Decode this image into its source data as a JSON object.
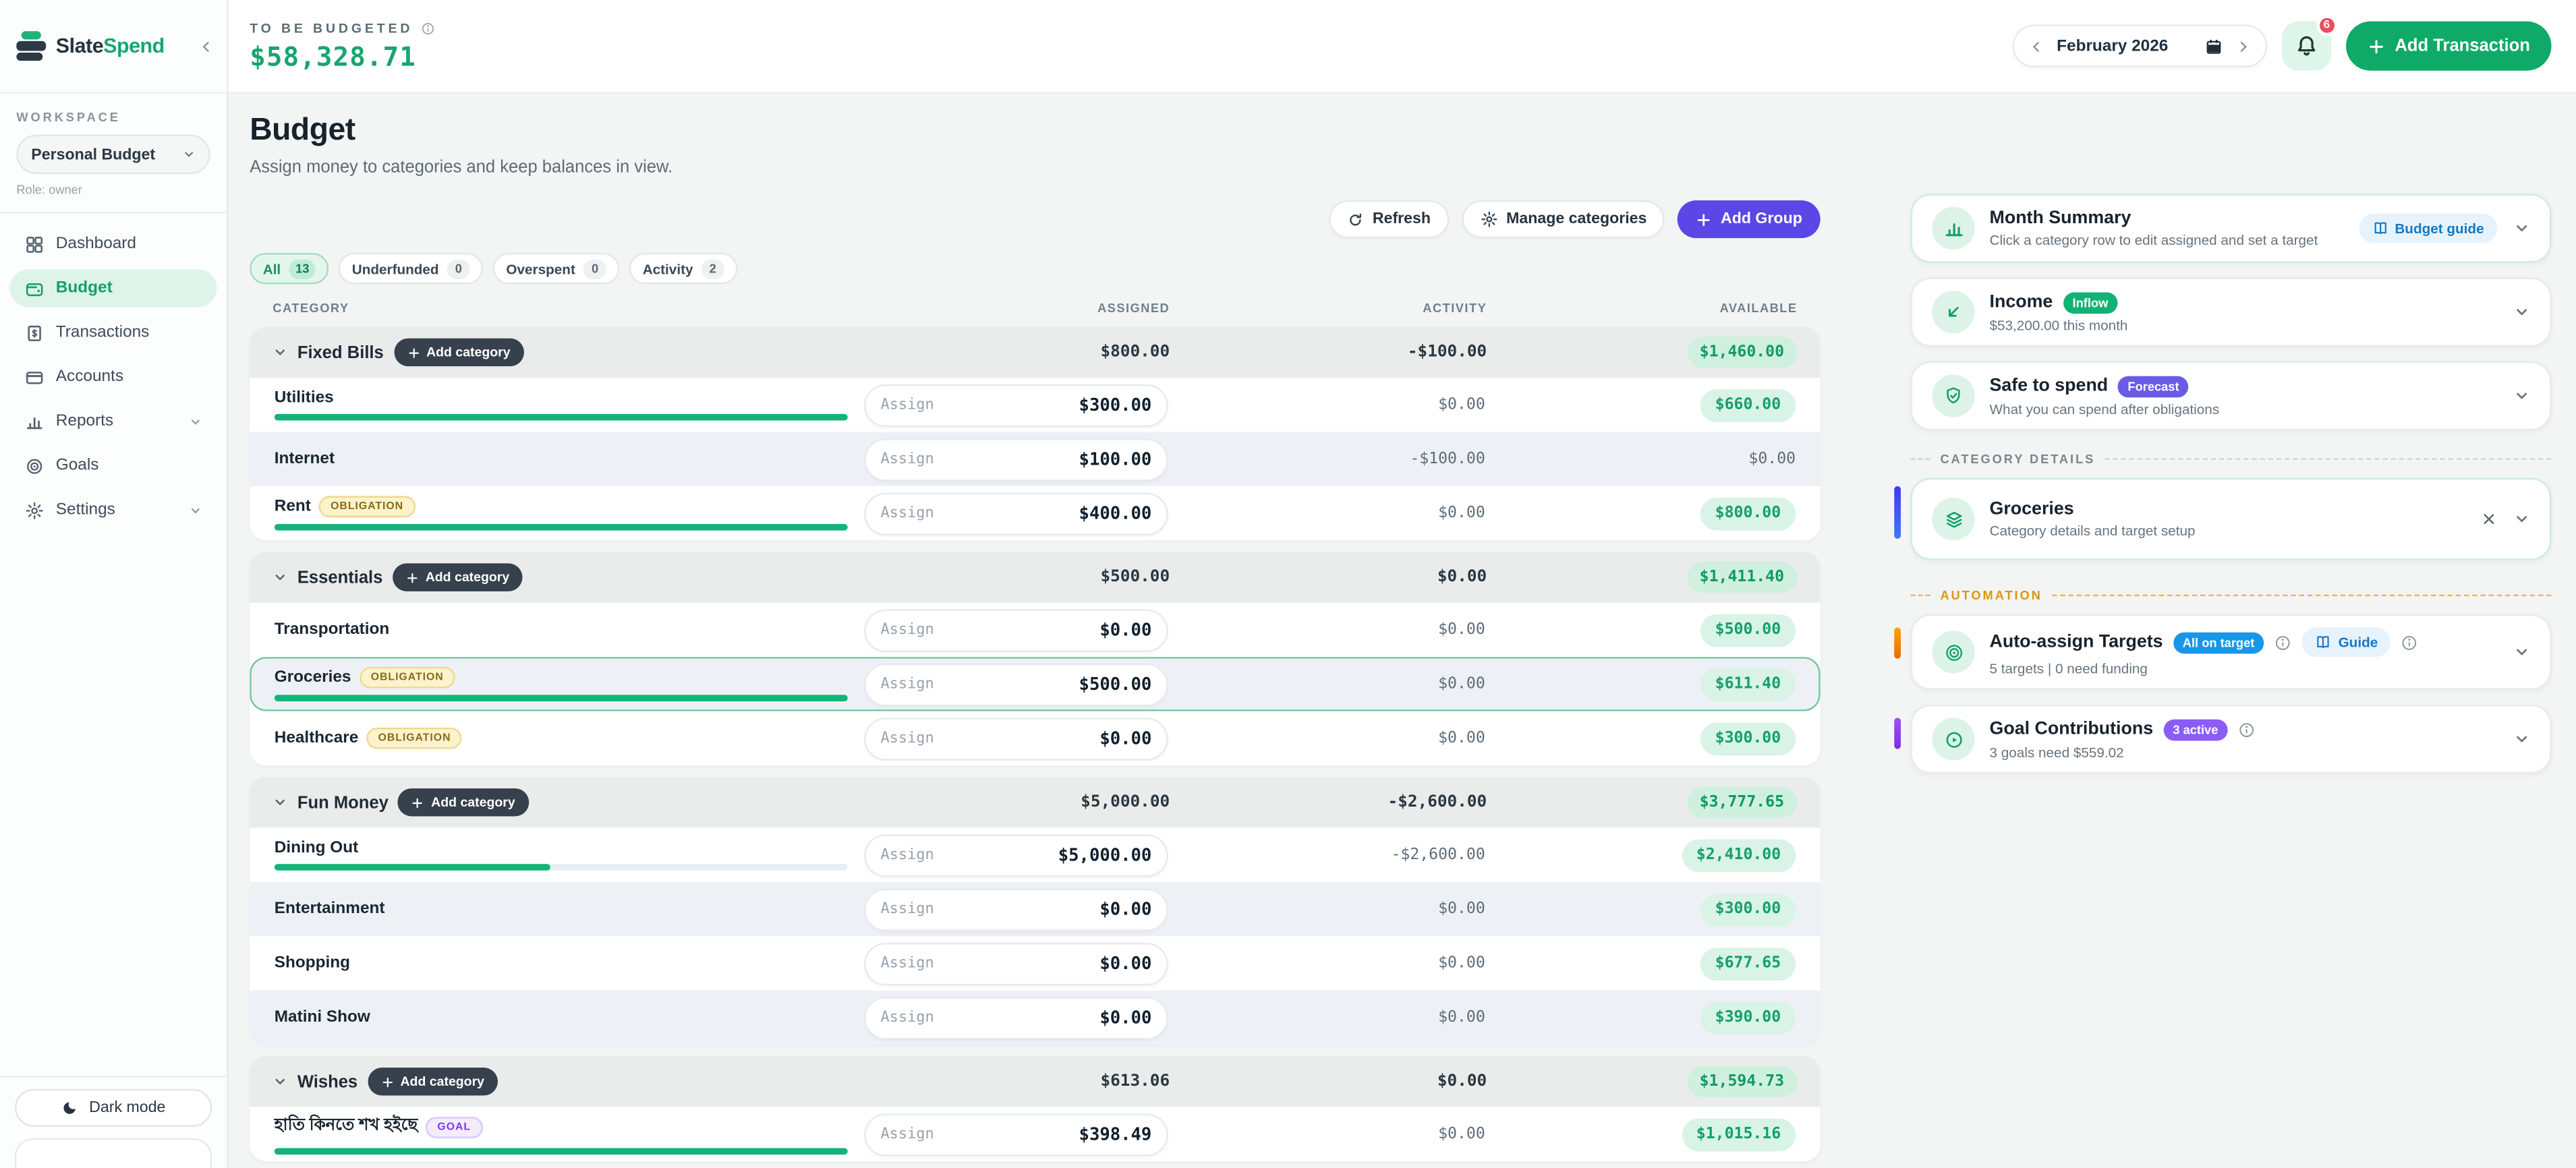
{
  "brand": {
    "name_primary": "Slate",
    "name_secondary": "Spend"
  },
  "topbar": {
    "to_be_budgeted_label": "TO BE BUDGETED",
    "to_be_budgeted_amount": "$58,328.71",
    "month": "February 2026",
    "notifications_count": "6",
    "add_transaction_label": "Add Transaction"
  },
  "sidebar": {
    "workspace_label": "WORKSPACE",
    "workspace_value": "Personal Budget",
    "role": "Role: owner",
    "items": [
      {
        "id": "dashboard",
        "label": "Dashboard",
        "active": false,
        "chevron": false
      },
      {
        "id": "budget",
        "label": "Budget",
        "active": true,
        "chevron": false
      },
      {
        "id": "transactions",
        "label": "Transactions",
        "active": false,
        "chevron": false
      },
      {
        "id": "accounts",
        "label": "Accounts",
        "active": false,
        "chevron": false
      },
      {
        "id": "reports",
        "label": "Reports",
        "active": false,
        "chevron": true
      },
      {
        "id": "goals",
        "label": "Goals",
        "active": false,
        "chevron": false
      },
      {
        "id": "settings",
        "label": "Settings",
        "active": false,
        "chevron": true
      }
    ],
    "dark_mode_label": "Dark mode"
  },
  "page": {
    "title": "Budget",
    "subtitle": "Assign money to categories and keep balances in view.",
    "toolbar": {
      "refresh": "Refresh",
      "manage": "Manage categories",
      "add_group": "Add Group"
    },
    "filters": [
      {
        "label": "All",
        "count": "13",
        "active": true
      },
      {
        "label": "Underfunded",
        "count": "0",
        "active": false
      },
      {
        "label": "Overspent",
        "count": "0",
        "active": false
      },
      {
        "label": "Activity",
        "count": "2",
        "active": false
      }
    ],
    "columns": {
      "category": "CATEGORY",
      "assigned": "ASSIGNED",
      "activity": "ACTIVITY",
      "available": "AVAILABLE"
    },
    "add_category_label": "Add category",
    "assign_placeholder": "Assign"
  },
  "groups": [
    {
      "name": "Fixed Bills",
      "assigned": "$800.00",
      "activity": "-$100.00",
      "available": "$1,460.00",
      "rows": [
        {
          "name": "Utilities",
          "badge": null,
          "assigned": "$300.00",
          "activity": "$0.00",
          "available": "$660.00",
          "available_badge": true,
          "progress": 1,
          "alt": false,
          "selected": false
        },
        {
          "name": "Internet",
          "badge": null,
          "assigned": "$100.00",
          "activity": "-$100.00",
          "available": "$0.00",
          "available_badge": false,
          "progress": null,
          "alt": true,
          "selected": false
        },
        {
          "name": "Rent",
          "badge": "OBLIGATION",
          "assigned": "$400.00",
          "activity": "$0.00",
          "available": "$800.00",
          "available_badge": true,
          "progress": 1,
          "alt": false,
          "selected": false
        }
      ]
    },
    {
      "name": "Essentials",
      "assigned": "$500.00",
      "activity": "$0.00",
      "available": "$1,411.40",
      "rows": [
        {
          "name": "Transportation",
          "badge": null,
          "assigned": "$0.00",
          "activity": "$0.00",
          "available": "$500.00",
          "available_badge": true,
          "progress": null,
          "alt": false,
          "selected": false
        },
        {
          "name": "Groceries",
          "badge": "OBLIGATION",
          "assigned": "$500.00",
          "activity": "$0.00",
          "available": "$611.40",
          "available_badge": true,
          "progress": 1,
          "alt": true,
          "selected": true
        },
        {
          "name": "Healthcare",
          "badge": "OBLIGATION",
          "assigned": "$0.00",
          "activity": "$0.00",
          "available": "$300.00",
          "available_badge": true,
          "progress": null,
          "alt": false,
          "selected": false
        }
      ]
    },
    {
      "name": "Fun Money",
      "assigned": "$5,000.00",
      "activity": "-$2,600.00",
      "available": "$3,777.65",
      "rows": [
        {
          "name": "Dining Out",
          "badge": null,
          "assigned": "$5,000.00",
          "activity": "-$2,600.00",
          "available": "$2,410.00",
          "available_badge": true,
          "progress": 0.48,
          "alt": false,
          "selected": false
        },
        {
          "name": "Entertainment",
          "badge": null,
          "assigned": "$0.00",
          "activity": "$0.00",
          "available": "$300.00",
          "available_badge": true,
          "progress": null,
          "alt": true,
          "selected": false
        },
        {
          "name": "Shopping",
          "badge": null,
          "assigned": "$0.00",
          "activity": "$0.00",
          "available": "$677.65",
          "available_badge": true,
          "progress": null,
          "alt": false,
          "selected": false
        },
        {
          "name": "Matini Show",
          "badge": null,
          "assigned": "$0.00",
          "activity": "$0.00",
          "available": "$390.00",
          "available_badge": true,
          "progress": null,
          "alt": true,
          "selected": false
        }
      ]
    },
    {
      "name": "Wishes",
      "assigned": "$613.06",
      "activity": "$0.00",
      "available": "$1,594.73",
      "rows": [
        {
          "name": "হাতি কিনতে শখ হইছে",
          "badge": "GOAL",
          "assigned": "$398.49",
          "activity": "$0.00",
          "available": "$1,015.16",
          "available_badge": true,
          "progress": 1,
          "alt": false,
          "selected": false
        }
      ]
    }
  ],
  "right_panel": {
    "month_summary": {
      "title": "Month Summary",
      "subtitle": "Click a category row to edit assigned and set a target",
      "action_label": "Budget guide"
    },
    "income": {
      "title": "Income",
      "badge": "Inflow",
      "subtitle": "$53,200.00 this month"
    },
    "safe_to_spend": {
      "title": "Safe to spend",
      "badge": "Forecast",
      "subtitle": "What you can spend after obligations"
    },
    "category_details_label": "CATEGORY DETAILS",
    "category_card": {
      "title": "Groceries",
      "subtitle": "Category details and target setup"
    },
    "automation_label": "AUTOMATION",
    "auto_assign": {
      "title": "Auto-assign Targets",
      "badge": "All on target",
      "guide_label": "Guide",
      "subtitle": "5 targets | 0 need funding"
    },
    "goal_contributions": {
      "title": "Goal Contributions",
      "badge": "3 active",
      "subtitle": "3 goals need $559.02"
    }
  },
  "colors": {
    "brand_green": "#16a771",
    "progress_green": "#14b377",
    "available_badge_bg": "#d9f3e6",
    "available_badge_text": "#13a069",
    "add_group_purple": "#5a47e6",
    "notification_red": "#ee4b5e",
    "obligation_badge_bg": "#fcf3cd",
    "goal_badge_bg": "#f2ecfd",
    "page_bg": "#f2f5f3"
  }
}
